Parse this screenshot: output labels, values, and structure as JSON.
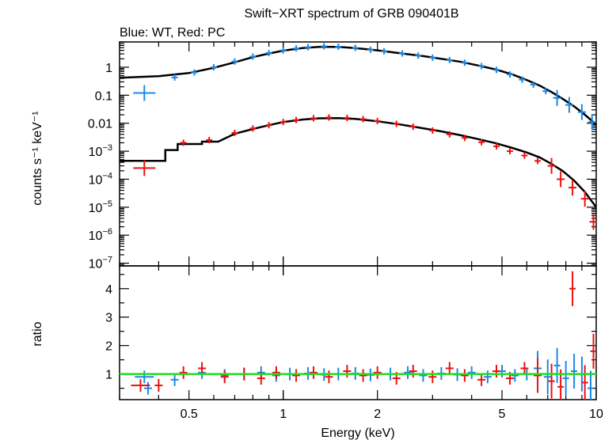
{
  "chart_data": {
    "type": "scatter",
    "title": "Swift−XRT spectrum of GRB 090401B",
    "subtitle": "Blue: WT, Red: PC",
    "xlabel": "Energy (keV)",
    "x_scale": "log",
    "xlim": [
      0.3,
      10
    ],
    "x_ticks": [
      {
        "v": 0.5,
        "label": "0.5"
      },
      {
        "v": 1,
        "label": "1"
      },
      {
        "v": 2,
        "label": "2"
      },
      {
        "v": 5,
        "label": "5"
      },
      {
        "v": 10,
        "label": "10"
      }
    ],
    "colors": {
      "wt": "#1e88e5",
      "pc": "#ee1111",
      "model": "#000000",
      "ratio_line": "#22dd22"
    },
    "top_panel": {
      "ylabel": "counts s⁻¹ keV⁻¹",
      "y_scale": "log",
      "ylim": [
        8e-08,
        8
      ],
      "y_ticks": [
        {
          "v": 1,
          "label": "1"
        },
        {
          "v": 0.1,
          "label": "0.1"
        },
        {
          "v": 0.01,
          "label": "0.01"
        },
        {
          "v": 0.001,
          "base": "10",
          "exp": "−3"
        },
        {
          "v": 0.0001,
          "base": "10",
          "exp": "−4"
        },
        {
          "v": 1e-05,
          "base": "10",
          "exp": "−5"
        },
        {
          "v": 1e-06,
          "base": "10",
          "exp": "−6"
        },
        {
          "v": 1e-07,
          "base": "10",
          "exp": "−7"
        }
      ],
      "series": [
        {
          "key": "wt",
          "points": [
            [
              0.36,
              0.12
            ],
            [
              0.45,
              0.43
            ],
            [
              0.52,
              0.65
            ],
            [
              0.6,
              1.0
            ],
            [
              0.7,
              1.6
            ],
            [
              0.8,
              2.4
            ],
            [
              0.9,
              3.2
            ],
            [
              1.0,
              4.0
            ],
            [
              1.1,
              4.7
            ],
            [
              1.2,
              5.2
            ],
            [
              1.35,
              5.6
            ],
            [
              1.5,
              5.4
            ],
            [
              1.7,
              4.9
            ],
            [
              1.9,
              4.2
            ],
            [
              2.1,
              3.7
            ],
            [
              2.4,
              3.1
            ],
            [
              2.7,
              2.6
            ],
            [
              3.0,
              2.2
            ],
            [
              3.4,
              1.8
            ],
            [
              3.8,
              1.45
            ],
            [
              4.3,
              1.1
            ],
            [
              4.8,
              0.8
            ],
            [
              5.3,
              0.55
            ],
            [
              5.8,
              0.36
            ],
            [
              6.3,
              0.24
            ],
            [
              6.9,
              0.14
            ],
            [
              7.5,
              0.08
            ],
            [
              8.2,
              0.045
            ],
            [
              9.0,
              0.025
            ],
            [
              9.7,
              0.011
            ]
          ]
        },
        {
          "key": "pc",
          "points": [
            [
              0.36,
              0.00025
            ],
            [
              0.48,
              0.002
            ],
            [
              0.58,
              0.0025
            ],
            [
              0.7,
              0.0045
            ],
            [
              0.8,
              0.0065
            ],
            [
              0.9,
              0.0085
            ],
            [
              1.0,
              0.011
            ],
            [
              1.1,
              0.013
            ],
            [
              1.25,
              0.015
            ],
            [
              1.4,
              0.016
            ],
            [
              1.6,
              0.0155
            ],
            [
              1.8,
              0.014
            ],
            [
              2.0,
              0.012
            ],
            [
              2.3,
              0.0095
            ],
            [
              2.6,
              0.0075
            ],
            [
              3.0,
              0.0055
            ],
            [
              3.4,
              0.004
            ],
            [
              3.8,
              0.003
            ],
            [
              4.3,
              0.0021
            ],
            [
              4.8,
              0.0015
            ],
            [
              5.3,
              0.001
            ],
            [
              5.9,
              0.0007
            ],
            [
              6.5,
              0.00045
            ],
            [
              7.2,
              0.0003
            ],
            [
              7.7,
              0.0001
            ],
            [
              8.4,
              5e-05
            ],
            [
              9.2,
              2e-05
            ],
            [
              9.8,
              3e-06
            ]
          ]
        }
      ],
      "model": [
        {
          "key": "wt",
          "points": [
            [
              0.3,
              0.42
            ],
            [
              0.4,
              0.48
            ],
            [
              0.5,
              0.62
            ],
            [
              0.6,
              0.95
            ],
            [
              0.7,
              1.5
            ],
            [
              0.8,
              2.3
            ],
            [
              0.9,
              3.1
            ],
            [
              1.0,
              3.9
            ],
            [
              1.15,
              4.8
            ],
            [
              1.3,
              5.3
            ],
            [
              1.5,
              5.3
            ],
            [
              1.7,
              4.8
            ],
            [
              2.0,
              4.0
            ],
            [
              2.4,
              3.1
            ],
            [
              2.8,
              2.5
            ],
            [
              3.2,
              2.0
            ],
            [
              3.7,
              1.55
            ],
            [
              4.2,
              1.15
            ],
            [
              4.8,
              0.82
            ],
            [
              5.4,
              0.55
            ],
            [
              6.0,
              0.35
            ],
            [
              6.6,
              0.22
            ],
            [
              7.2,
              0.13
            ],
            [
              7.8,
              0.075
            ],
            [
              8.5,
              0.04
            ],
            [
              9.2,
              0.02
            ],
            [
              10.0,
              0.009
            ]
          ]
        },
        {
          "key": "pc",
          "points": [
            [
              0.3,
              0.00045
            ],
            [
              0.42,
              0.00045
            ],
            [
              0.42,
              0.0011
            ],
            [
              0.46,
              0.0011
            ],
            [
              0.46,
              0.0018
            ],
            [
              0.55,
              0.0018
            ],
            [
              0.55,
              0.0022
            ],
            [
              0.62,
              0.0022
            ],
            [
              0.7,
              0.0042
            ],
            [
              0.8,
              0.0062
            ],
            [
              0.9,
              0.0085
            ],
            [
              1.0,
              0.011
            ],
            [
              1.15,
              0.0135
            ],
            [
              1.3,
              0.015
            ],
            [
              1.5,
              0.0152
            ],
            [
              1.7,
              0.0142
            ],
            [
              2.0,
              0.0118
            ],
            [
              2.4,
              0.0088
            ],
            [
              2.8,
              0.0066
            ],
            [
              3.2,
              0.0051
            ],
            [
              3.7,
              0.0037
            ],
            [
              4.2,
              0.0027
            ],
            [
              4.8,
              0.0019
            ],
            [
              5.4,
              0.0013
            ],
            [
              6.0,
              0.0009
            ],
            [
              6.6,
              0.0006
            ],
            [
              7.2,
              0.00035
            ],
            [
              7.8,
              0.0002
            ],
            [
              8.5,
              9e-05
            ],
            [
              9.2,
              3.5e-05
            ],
            [
              10.0,
              1e-05
            ]
          ]
        }
      ]
    },
    "bottom_panel": {
      "ylabel": "ratio",
      "y_scale": "linear",
      "ylim": [
        0.1,
        4.8
      ],
      "y_ticks": [
        {
          "v": 1,
          "label": "1"
        },
        {
          "v": 2,
          "label": "2"
        },
        {
          "v": 3,
          "label": "3"
        },
        {
          "v": 4,
          "label": "4"
        }
      ],
      "reference_line": 1,
      "series": [
        {
          "key": "wt",
          "points": [
            [
              0.36,
              0.9
            ],
            [
              0.37,
              0.5
            ],
            [
              0.45,
              0.8
            ],
            [
              0.55,
              1.05
            ],
            [
              0.65,
              0.95
            ],
            [
              0.75,
              1.0
            ],
            [
              0.85,
              1.05
            ],
            [
              0.95,
              0.95
            ],
            [
              1.05,
              1.0
            ],
            [
              1.2,
              1.02
            ],
            [
              1.35,
              0.98
            ],
            [
              1.5,
              1.0
            ],
            [
              1.7,
              1.02
            ],
            [
              1.9,
              0.97
            ],
            [
              2.2,
              1.0
            ],
            [
              2.5,
              1.05
            ],
            [
              2.8,
              0.95
            ],
            [
              3.2,
              1.02
            ],
            [
              3.6,
              0.98
            ],
            [
              4.0,
              1.05
            ],
            [
              4.5,
              0.9
            ],
            [
              5.0,
              1.1
            ],
            [
              5.5,
              0.95
            ],
            [
              6.0,
              1.0
            ],
            [
              6.5,
              1.2
            ],
            [
              7.0,
              0.9
            ],
            [
              7.5,
              1.3
            ],
            [
              8.0,
              0.85
            ],
            [
              8.5,
              1.1
            ],
            [
              9.0,
              1.0
            ],
            [
              9.6,
              0.5
            ]
          ]
        },
        {
          "key": "pc",
          "points": [
            [
              0.35,
              0.6
            ],
            [
              0.4,
              0.6
            ],
            [
              0.48,
              1.05
            ],
            [
              0.55,
              1.2
            ],
            [
              0.65,
              0.9
            ],
            [
              0.75,
              1.0
            ],
            [
              0.85,
              0.85
            ],
            [
              0.95,
              1.05
            ],
            [
              1.1,
              0.95
            ],
            [
              1.25,
              1.05
            ],
            [
              1.4,
              0.9
            ],
            [
              1.6,
              1.1
            ],
            [
              1.8,
              0.95
            ],
            [
              2.0,
              1.05
            ],
            [
              2.3,
              0.85
            ],
            [
              2.6,
              1.1
            ],
            [
              3.0,
              0.9
            ],
            [
              3.4,
              1.2
            ],
            [
              3.8,
              0.95
            ],
            [
              4.3,
              0.8
            ],
            [
              4.8,
              1.1
            ],
            [
              5.3,
              0.85
            ],
            [
              5.9,
              1.2
            ],
            [
              6.5,
              0.95
            ],
            [
              7.2,
              0.75
            ],
            [
              7.7,
              0.55
            ],
            [
              8.4,
              4.0
            ],
            [
              9.2,
              0.7
            ],
            [
              9.8,
              1.8
            ]
          ]
        }
      ]
    }
  }
}
